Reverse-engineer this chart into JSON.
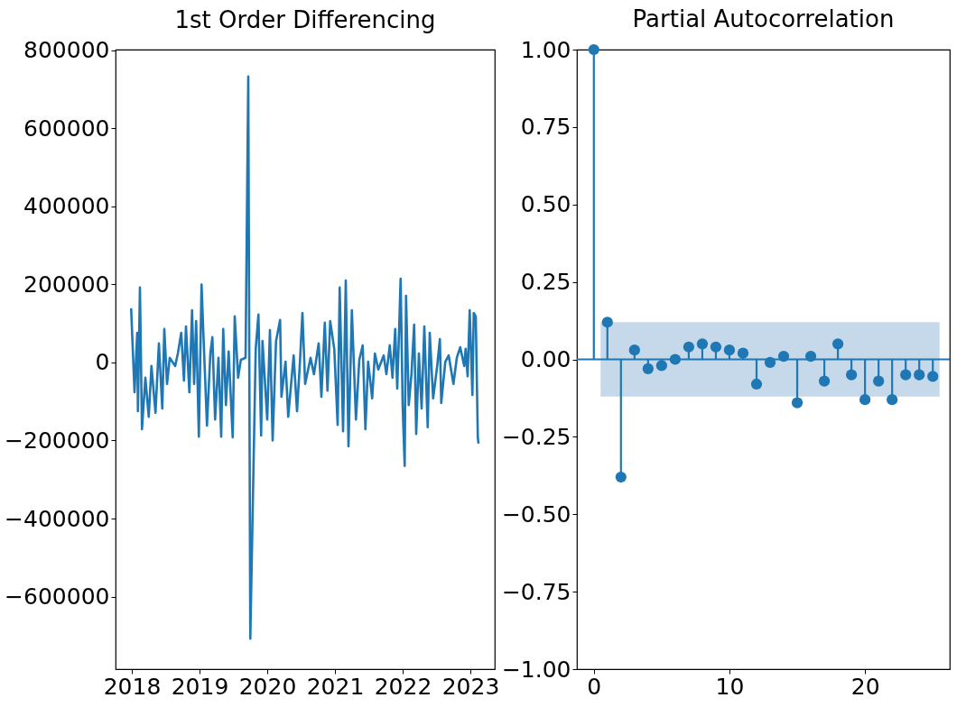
{
  "chart_data": [
    {
      "type": "line",
      "title": "1st Order Differencing",
      "color": "#1f77b4",
      "line_style": "solid",
      "grid": false,
      "x": [
        2017.99,
        2018.04,
        2018.08,
        2018.09,
        2018.12,
        2018.15,
        2018.2,
        2018.25,
        2018.29,
        2018.35,
        2018.4,
        2018.45,
        2018.48,
        2018.52,
        2018.56,
        2018.64,
        2018.68,
        2018.73,
        2018.77,
        2018.8,
        2018.85,
        2018.89,
        2018.92,
        2018.95,
        2018.99,
        2019.03,
        2019.05,
        2019.11,
        2019.16,
        2019.19,
        2019.23,
        2019.28,
        2019.32,
        2019.35,
        2019.39,
        2019.43,
        2019.49,
        2019.52,
        2019.57,
        2019.61,
        2019.68,
        2019.72,
        2019.75,
        2019.83,
        2019.87,
        2019.91,
        2019.93,
        2020.0,
        2020.04,
        2020.08,
        2020.13,
        2020.19,
        2020.21,
        2020.27,
        2020.31,
        2020.39,
        2020.44,
        2020.48,
        2020.52,
        2020.56,
        2020.64,
        2020.69,
        2020.76,
        2020.8,
        2020.85,
        2020.89,
        2020.93,
        2020.99,
        2021.04,
        2021.07,
        2021.12,
        2021.16,
        2021.2,
        2021.25,
        2021.31,
        2021.36,
        2021.41,
        2021.45,
        2021.49,
        2021.55,
        2021.59,
        2021.64,
        2021.72,
        2021.76,
        2021.81,
        2021.85,
        2021.89,
        2021.92,
        2021.95,
        2021.97,
        2022.0,
        2022.03,
        2022.05,
        2022.09,
        2022.13,
        2022.17,
        2022.2,
        2022.24,
        2022.28,
        2022.32,
        2022.37,
        2022.4,
        2022.45,
        2022.51,
        2022.55,
        2022.57,
        2022.63,
        2022.68,
        2022.75,
        2022.8,
        2022.85,
        2022.91,
        2022.93,
        2022.96,
        2022.99,
        2023.03,
        2023.05,
        2023.08,
        2023.11,
        2023.12
      ],
      "values": [
        139000,
        -76000,
        76000,
        -125000,
        192000,
        -171000,
        -39000,
        -139000,
        -9000,
        -129000,
        49000,
        -118000,
        86000,
        -55000,
        12000,
        -9000,
        23000,
        76000,
        -46000,
        92000,
        -76000,
        134000,
        -55000,
        106000,
        -190000,
        200000,
        106000,
        -162000,
        23000,
        65000,
        -146000,
        12000,
        -190000,
        86000,
        -109000,
        28000,
        -192000,
        118000,
        -39000,
        7000,
        12000,
        733000,
        -708000,
        35000,
        123000,
        -187000,
        55000,
        -146000,
        83000,
        -200000,
        55000,
        109000,
        -88000,
        2000,
        -139000,
        18000,
        -125000,
        -9000,
        127000,
        -55000,
        12000,
        -30000,
        49000,
        -88000,
        102000,
        -72000,
        106000,
        35000,
        -160000,
        192000,
        -176000,
        210000,
        -215000,
        134000,
        -146000,
        7000,
        44000,
        -171000,
        2000,
        -92000,
        23000,
        -18000,
        18000,
        -30000,
        44000,
        -39000,
        86000,
        -67000,
        97000,
        215000,
        -109000,
        -265000,
        171000,
        -109000,
        -30000,
        97000,
        -183000,
        23000,
        -118000,
        92000,
        -166000,
        76000,
        -92000,
        -9000,
        60000,
        -104000,
        2000,
        18000,
        -55000,
        12000,
        39000,
        -9000,
        35000,
        -35000,
        134000,
        -83000,
        127000,
        118000,
        -192000,
        -208000
      ],
      "xlim": [
        2017.76,
        2023.36
      ],
      "xticks": [
        2018,
        2019,
        2020,
        2021,
        2022,
        2023
      ],
      "ylim": [
        -786000,
        802000
      ],
      "yticks": [
        {
          "value": -600000,
          "label": "−600000"
        },
        {
          "value": -400000,
          "label": "−400000"
        },
        {
          "value": -200000,
          "label": "−200000"
        },
        0,
        200000,
        400000,
        600000,
        800000
      ]
    },
    {
      "type": "lollipop",
      "title": "Partial Autocorrelation",
      "color": "#1f77b4",
      "marker": "circle",
      "grid": false,
      "x": [
        0,
        1,
        2,
        3,
        4,
        5,
        6,
        7,
        8,
        9,
        10,
        11,
        12,
        13,
        14,
        15,
        16,
        17,
        18,
        19,
        20,
        21,
        22,
        23,
        24,
        25
      ],
      "values": [
        1.0,
        0.12,
        -0.38,
        0.03,
        -0.03,
        -0.02,
        0.0,
        0.04,
        0.05,
        0.04,
        0.03,
        0.02,
        -0.08,
        -0.01,
        0.01,
        -0.14,
        0.01,
        -0.07,
        0.05,
        -0.05,
        -0.13,
        -0.07,
        -0.13,
        -0.05,
        -0.05,
        -0.055
      ],
      "bands": [
        {
          "axis": "y",
          "from": -0.12,
          "to": 0.12,
          "color": "#c5d9eb"
        }
      ],
      "ref_lines": [
        {
          "axis": "y",
          "value": 0,
          "color": "#1f77b4"
        }
      ],
      "xlim": [
        -1.25,
        26.25
      ],
      "xticks": [
        0,
        10,
        20
      ],
      "ylim": [
        -1,
        1
      ],
      "yticks": [
        {
          "value": -1,
          "label": "−1.00"
        },
        {
          "value": -0.75,
          "label": "−0.75"
        },
        {
          "value": -0.5,
          "label": "−0.50"
        },
        {
          "value": -0.25,
          "label": "−0.25"
        },
        {
          "value": 0,
          "label": "0.00"
        },
        {
          "value": 0.25,
          "label": "0.25"
        },
        {
          "value": 0.5,
          "label": "0.50"
        },
        {
          "value": 0.75,
          "label": "0.75"
        },
        {
          "value": 1,
          "label": "1.00"
        }
      ]
    }
  ]
}
